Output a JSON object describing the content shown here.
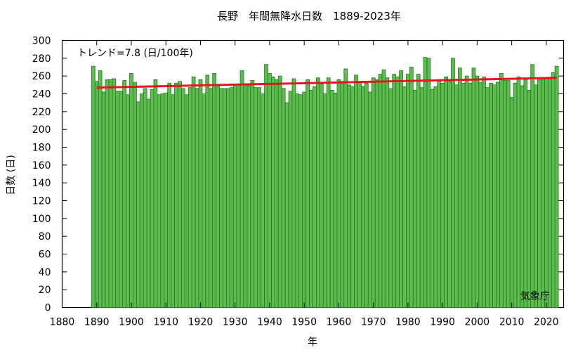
{
  "chart_data": {
    "type": "bar",
    "title": "長野　年間無降水日数　1889-2023年",
    "xlabel": "年",
    "ylabel": "日数 (日)",
    "trend_label": "トレンド=7.8 (日/100年)",
    "source_label": "気象庁",
    "xlim": [
      1880,
      2025
    ],
    "ylim": [
      0,
      300
    ],
    "x_ticks": [
      1880,
      1890,
      1900,
      1910,
      1920,
      1930,
      1940,
      1950,
      1960,
      1970,
      1980,
      1990,
      2000,
      2010,
      2020
    ],
    "y_ticks": [
      0,
      20,
      40,
      60,
      80,
      100,
      120,
      140,
      160,
      180,
      200,
      220,
      240,
      260,
      280,
      300
    ],
    "years": [
      1889,
      1890,
      1891,
      1892,
      1893,
      1894,
      1895,
      1896,
      1897,
      1898,
      1899,
      1900,
      1901,
      1902,
      1903,
      1904,
      1905,
      1906,
      1907,
      1908,
      1909,
      1910,
      1911,
      1912,
      1913,
      1914,
      1915,
      1916,
      1917,
      1918,
      1919,
      1920,
      1921,
      1922,
      1923,
      1924,
      1925,
      1926,
      1927,
      1928,
      1929,
      1930,
      1931,
      1932,
      1933,
      1934,
      1935,
      1936,
      1937,
      1938,
      1939,
      1940,
      1941,
      1942,
      1943,
      1944,
      1945,
      1946,
      1947,
      1948,
      1949,
      1950,
      1951,
      1952,
      1953,
      1954,
      1955,
      1956,
      1957,
      1958,
      1959,
      1960,
      1961,
      1962,
      1963,
      1964,
      1965,
      1966,
      1967,
      1968,
      1969,
      1970,
      1971,
      1972,
      1973,
      1974,
      1975,
      1976,
      1977,
      1978,
      1979,
      1980,
      1981,
      1982,
      1983,
      1984,
      1985,
      1986,
      1987,
      1988,
      1989,
      1990,
      1991,
      1992,
      1993,
      1994,
      1995,
      1996,
      1997,
      1998,
      1999,
      2000,
      2001,
      2002,
      2003,
      2004,
      2005,
      2006,
      2007,
      2008,
      2009,
      2010,
      2011,
      2012,
      2013,
      2014,
      2015,
      2016,
      2017,
      2018,
      2019,
      2020,
      2021,
      2022,
      2023
    ],
    "values": [
      271,
      254,
      266,
      242,
      256,
      256,
      257,
      243,
      243,
      255,
      239,
      263,
      253,
      231,
      240,
      246,
      234,
      245,
      256,
      239,
      240,
      241,
      252,
      239,
      252,
      254,
      246,
      239,
      247,
      259,
      246,
      256,
      240,
      261,
      246,
      263,
      249,
      246,
      246,
      246,
      247,
      250,
      250,
      266,
      250,
      249,
      255,
      247,
      247,
      240,
      273,
      263,
      259,
      256,
      260,
      246,
      230,
      243,
      257,
      240,
      239,
      242,
      256,
      244,
      248,
      258,
      251,
      240,
      258,
      244,
      241,
      256,
      254,
      268,
      250,
      248,
      261,
      254,
      248,
      252,
      242,
      258,
      256,
      262,
      267,
      258,
      246,
      262,
      259,
      266,
      248,
      262,
      270,
      244,
      262,
      247,
      281,
      280,
      245,
      248,
      256,
      252,
      259,
      254,
      280,
      250,
      269,
      252,
      260,
      252,
      269,
      260,
      253,
      259,
      247,
      252,
      250,
      253,
      263,
      255,
      255,
      236,
      252,
      259,
      249,
      256,
      244,
      273,
      250,
      256,
      256,
      258,
      258,
      264,
      271
    ],
    "trend": {
      "x": [
        1890,
        2023
      ],
      "y": [
        247,
        258
      ]
    },
    "colors": {
      "bar_fill": "#5DBB4F",
      "bar_edge": "#1E7A1E",
      "trend": "#E8141C",
      "axis": "#000000"
    },
    "grid": false
  }
}
